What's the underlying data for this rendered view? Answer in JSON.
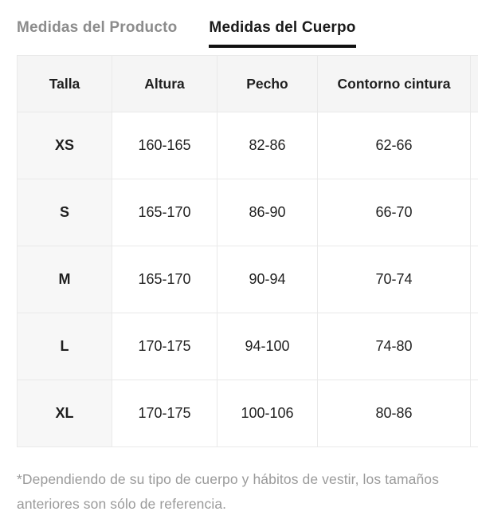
{
  "tabs": [
    {
      "label": "Medidas del Producto",
      "active": false
    },
    {
      "label": "Medidas del Cuerpo",
      "active": true
    }
  ],
  "table": {
    "headers": [
      "Talla",
      "Altura",
      "Pecho",
      "Contorno cintura"
    ],
    "rows": [
      [
        "XS",
        "160-165",
        "82-86",
        "62-66"
      ],
      [
        "S",
        "165-170",
        "86-90",
        "66-70"
      ],
      [
        "M",
        "165-170",
        "90-94",
        "70-74"
      ],
      [
        "L",
        "170-175",
        "94-100",
        "74-80"
      ],
      [
        "XL",
        "170-175",
        "100-106",
        "80-86"
      ]
    ]
  },
  "footnote": "*Dependiendo de su tipo de cuerpo y hábitos de vestir, los tamaños anteriores son sólo de referencia.",
  "colors": {
    "active_tab_text": "#1a1a1a",
    "active_tab_underline": "#111111",
    "inactive_tab_text": "#8c8c8c",
    "header_row_bg": "#f5f5f5",
    "size_column_bg": "#f7f7f7",
    "cell_border": "#e9e9e9",
    "body_text": "#1f1f1f",
    "footnote_text": "#9a9a9a",
    "page_bg": "#ffffff"
  }
}
